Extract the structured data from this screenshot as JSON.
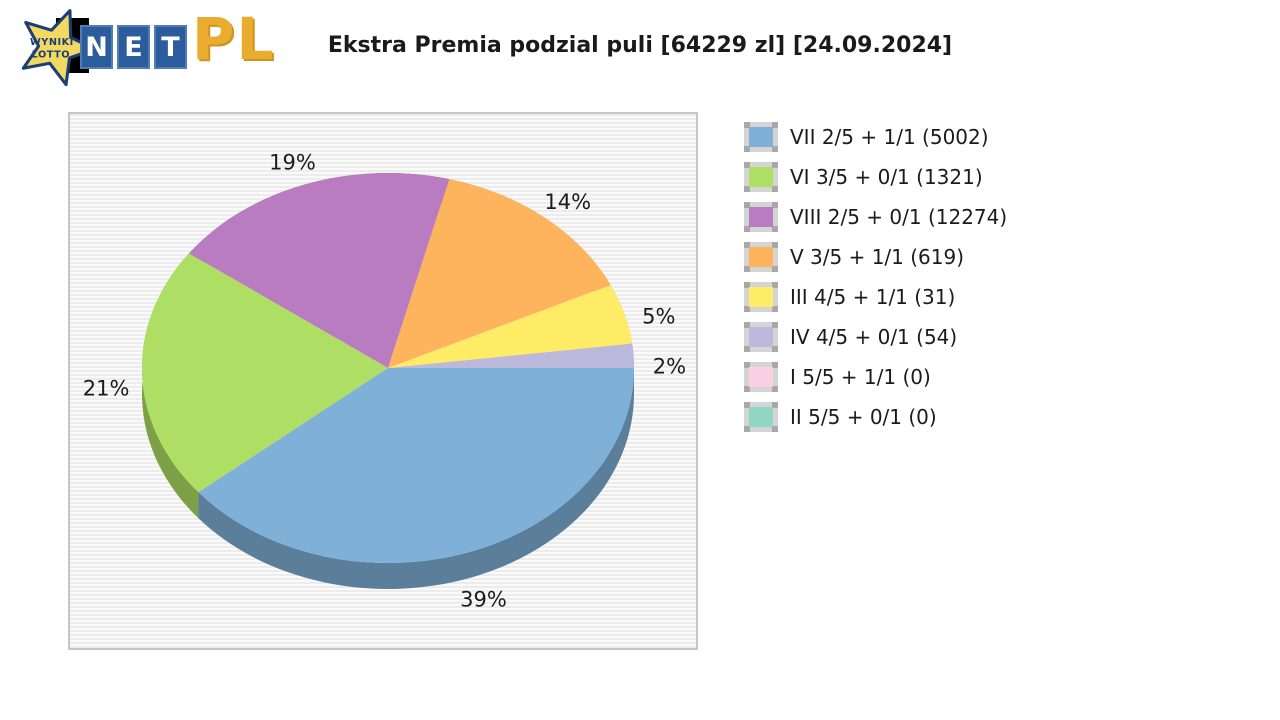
{
  "logo": {
    "star_line1": "WYNIKI",
    "star_line2": "LOTTO",
    "tiles": [
      "N",
      "E",
      "T"
    ],
    "suffix": "PL",
    "star_fill": "#F2D964",
    "star_outline": "#1c3e74",
    "tile_blue": "#2B5C9E",
    "pl_gold": "#E9AC2E"
  },
  "title": "Ekstra Premia podzial puli [64229 zl] [24.09.2024]",
  "chart_data": {
    "type": "pie",
    "title": "Ekstra Premia podzial puli [64229 zl] [24.09.2024]",
    "style": "3d",
    "legend_position": "right",
    "labels_format": "percent",
    "slices": [
      {
        "label": "VII 2/5 + 1/1",
        "count": 5002,
        "pct": 39,
        "color": "#7FB0D7"
      },
      {
        "label": "VI 3/5 + 0/1",
        "count": 1321,
        "pct": 21,
        "color": "#AEDE63"
      },
      {
        "label": "VIII 2/5 + 0/1",
        "count": 12274,
        "pct": 19,
        "color": "#BA7CC0"
      },
      {
        "label": "V 3/5 + 1/1",
        "count": 619,
        "pct": 14,
        "color": "#FDB45C"
      },
      {
        "label": "III 4/5 + 1/1",
        "count": 31,
        "pct": 5,
        "color": "#FEEB66"
      },
      {
        "label": "IV 4/5 + 0/1",
        "count": 54,
        "pct": 2,
        "color": "#BCB8DC"
      },
      {
        "label": "I 5/5 + 1/1",
        "count": 0,
        "pct": 0,
        "color": "#FBD0E4"
      },
      {
        "label": "II 5/5 + 0/1",
        "count": 0,
        "pct": 0,
        "color": "#92D7C4"
      }
    ]
  }
}
